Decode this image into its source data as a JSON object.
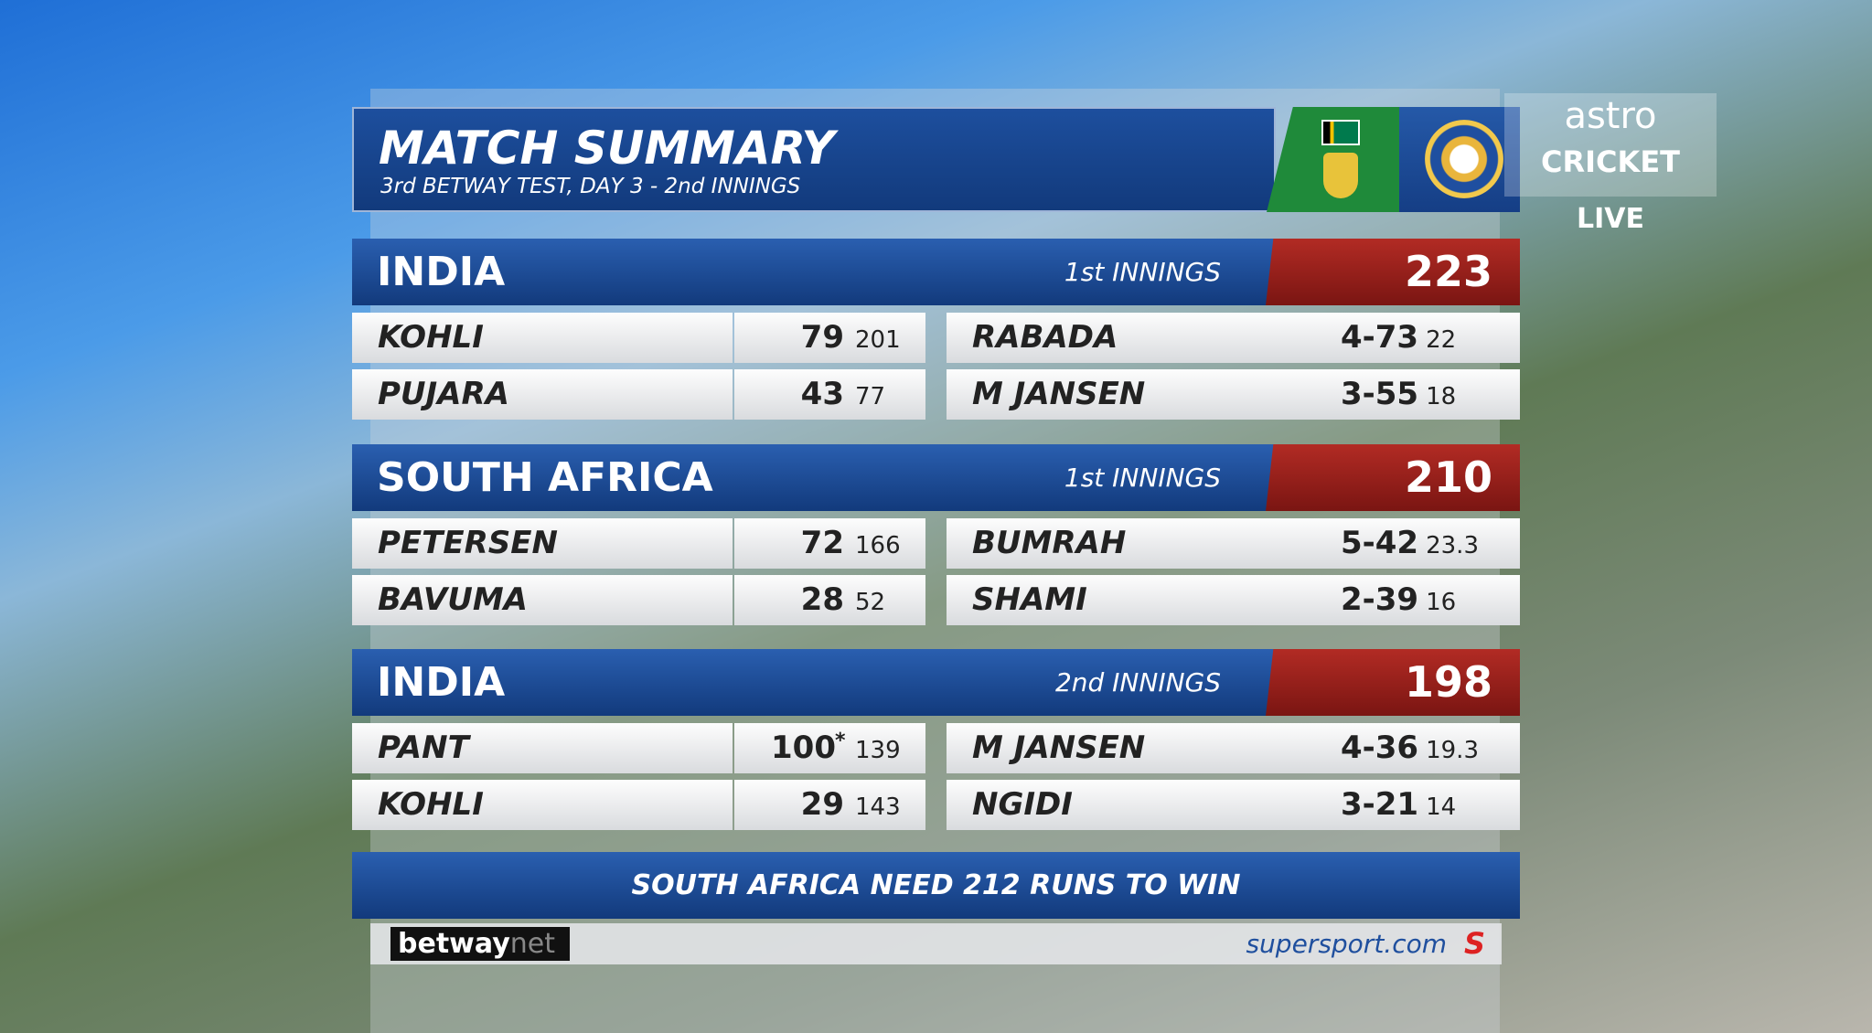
{
  "header": {
    "title": "MATCH SUMMARY",
    "subtitle": "3rd BETWAY TEST, DAY 3 - 2nd INNINGS"
  },
  "innings": [
    {
      "team": "INDIA",
      "label": "1st INNINGS",
      "total": 223,
      "batters": [
        {
          "name": "KOHLI",
          "runs": 79,
          "balls": 201
        },
        {
          "name": "PUJARA",
          "runs": 43,
          "balls": 77
        }
      ],
      "bowlers": [
        {
          "name": "RABADA",
          "figures": "4-73",
          "overs": 22
        },
        {
          "name": "M JANSEN",
          "figures": "3-55",
          "overs": 18
        }
      ]
    },
    {
      "team": "SOUTH AFRICA",
      "label": "1st INNINGS",
      "total": 210,
      "batters": [
        {
          "name": "PETERSEN",
          "runs": 72,
          "balls": 166
        },
        {
          "name": "BAVUMA",
          "runs": 28,
          "balls": 52
        }
      ],
      "bowlers": [
        {
          "name": "BUMRAH",
          "figures": "5-42",
          "overs": 23.3
        },
        {
          "name": "SHAMI",
          "figures": "2-39",
          "overs": 16
        }
      ]
    },
    {
      "team": "INDIA",
      "label": "2nd INNINGS",
      "total": 198,
      "batters": [
        {
          "name": "PANT",
          "runs": 100,
          "not_out": "*",
          "balls": 139
        },
        {
          "name": "KOHLI",
          "runs": 29,
          "balls": 143
        }
      ],
      "bowlers": [
        {
          "name": "M JANSEN",
          "figures": "4-36",
          "overs": 19.3
        },
        {
          "name": "NGIDI",
          "figures": "3-21",
          "overs": 14
        }
      ]
    }
  ],
  "footer": "SOUTH AFRICA NEED 212 RUNS TO WIN",
  "sponsors": {
    "left": "betway",
    "left_suffix": "net",
    "right": "supersport.com"
  },
  "broadcaster": {
    "brand": "astro",
    "channel": "CRICKET",
    "status": "LIVE"
  }
}
